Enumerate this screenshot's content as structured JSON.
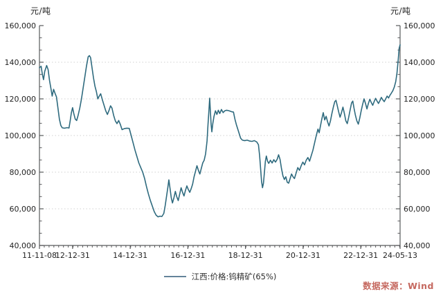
{
  "chart": {
    "unit_left": "元/吨",
    "unit_right": "元/吨",
    "legend": "江西:价格:钨精矿(65%)",
    "source": "数据来源：Wind"
  },
  "colors": {
    "line": "#2e6a7e",
    "axis": "#58595b",
    "tick_label": "#1f1f1f",
    "grid": "#cfcfcf",
    "legend_marker": "#64839a",
    "source_text": "#c5685f"
  },
  "chart_data": {
    "type": "line",
    "title": "",
    "ylabel": "元/吨",
    "legend_position": "bottom-center",
    "grid": "horizontal-dotted",
    "y_axis": {
      "min": 40000,
      "max": 160000,
      "major_step": 20000,
      "minor_divisions": 3,
      "tick_labels": [
        "40,000",
        "60,000",
        "80,000",
        "100,000",
        "120,000",
        "140,000",
        "160,000"
      ],
      "sides": [
        "left",
        "right"
      ]
    },
    "x_axis": {
      "tick_labels": [
        "11-11-08",
        "12-12-31",
        "14-12-31",
        "16-12-31",
        "18-12-31",
        "20-12-31",
        "22-12-31",
        "24-05-13"
      ],
      "tick_months": [
        0,
        13.8,
        37.8,
        61.8,
        85.8,
        109.8,
        133.8,
        150.2
      ],
      "minor_tick_step_months": 2,
      "domain_months": [
        0,
        150.2
      ]
    },
    "series": [
      {
        "name": "江西:价格:钨精矿(65%)",
        "color": "#2e6a7e",
        "x_unit": "months since 2011-11-08",
        "y_unit": "CNY per ton",
        "points": [
          [
            0,
            137000
          ],
          [
            0.7,
            137800
          ],
          [
            1.2,
            133500
          ],
          [
            1.7,
            130500
          ],
          [
            2.2,
            135000
          ],
          [
            3,
            138200
          ],
          [
            3.6,
            136000
          ],
          [
            4.2,
            130000
          ],
          [
            4.8,
            125500
          ],
          [
            5.3,
            121500
          ],
          [
            5.9,
            125200
          ],
          [
            6.5,
            123000
          ],
          [
            7.1,
            121000
          ],
          [
            7.7,
            115000
          ],
          [
            8.3,
            109000
          ],
          [
            8.9,
            105500
          ],
          [
            9.5,
            104200
          ],
          [
            10.5,
            104000
          ],
          [
            11.5,
            104300
          ],
          [
            12.3,
            104100
          ],
          [
            12.8,
            108000
          ],
          [
            13.3,
            112500
          ],
          [
            13.8,
            115200
          ],
          [
            14.3,
            112000
          ],
          [
            14.9,
            109000
          ],
          [
            15.5,
            108200
          ],
          [
            16.1,
            111000
          ],
          [
            16.8,
            115000
          ],
          [
            17.5,
            120000
          ],
          [
            18.2,
            126000
          ],
          [
            18.9,
            132000
          ],
          [
            19.6,
            138000
          ],
          [
            20.3,
            143000
          ],
          [
            20.8,
            143600
          ],
          [
            21.3,
            142500
          ],
          [
            21.9,
            137000
          ],
          [
            22.5,
            131500
          ],
          [
            23.1,
            127000
          ],
          [
            23.7,
            124000
          ],
          [
            24.3,
            120000
          ],
          [
            24.9,
            121500
          ],
          [
            25.5,
            122800
          ],
          [
            26.2,
            119500
          ],
          [
            26.9,
            116500
          ],
          [
            27.6,
            113500
          ],
          [
            28.3,
            111500
          ],
          [
            29,
            113800
          ],
          [
            29.6,
            116200
          ],
          [
            30.2,
            115000
          ],
          [
            30.9,
            111000
          ],
          [
            31.6,
            108000
          ],
          [
            32.3,
            106500
          ],
          [
            33,
            108200
          ],
          [
            33.7,
            106000
          ],
          [
            34.4,
            103200
          ],
          [
            35.4,
            103800
          ],
          [
            36.4,
            104000
          ],
          [
            37.4,
            103900
          ],
          [
            38.2,
            100000
          ],
          [
            39,
            96000
          ],
          [
            39.8,
            92000
          ],
          [
            40.6,
            88500
          ],
          [
            41.4,
            85000
          ],
          [
            42.2,
            82500
          ],
          [
            43,
            80000
          ],
          [
            43.8,
            76500
          ],
          [
            44.6,
            72000
          ],
          [
            45.4,
            68000
          ],
          [
            46.2,
            64500
          ],
          [
            47,
            61500
          ],
          [
            47.8,
            58500
          ],
          [
            48.6,
            56500
          ],
          [
            49.4,
            55600
          ],
          [
            50.2,
            56000
          ],
          [
            51,
            55800
          ],
          [
            51.8,
            57500
          ],
          [
            52.4,
            62000
          ],
          [
            52.9,
            66500
          ],
          [
            53.4,
            71000
          ],
          [
            53.9,
            75800
          ],
          [
            54.4,
            71000
          ],
          [
            54.9,
            66000
          ],
          [
            55.4,
            63200
          ],
          [
            56,
            66000
          ],
          [
            56.6,
            69500
          ],
          [
            57.2,
            66500
          ],
          [
            57.8,
            64500
          ],
          [
            58.4,
            68000
          ],
          [
            59,
            71500
          ],
          [
            59.6,
            69000
          ],
          [
            60.2,
            67000
          ],
          [
            60.8,
            70000
          ],
          [
            61.4,
            72500
          ],
          [
            62,
            70500
          ],
          [
            62.6,
            69000
          ],
          [
            63.2,
            71000
          ],
          [
            63.8,
            73500
          ],
          [
            64.4,
            77500
          ],
          [
            65,
            80500
          ],
          [
            65.6,
            83500
          ],
          [
            66.2,
            81000
          ],
          [
            66.8,
            79000
          ],
          [
            67.4,
            82000
          ],
          [
            68,
            85000
          ],
          [
            68.6,
            86500
          ],
          [
            69.2,
            90000
          ],
          [
            69.8,
            97000
          ],
          [
            70.2,
            106000
          ],
          [
            70.6,
            114000
          ],
          [
            70.9,
            120400
          ],
          [
            71.2,
            113000
          ],
          [
            71.5,
            106000
          ],
          [
            71.8,
            102000
          ],
          [
            72.2,
            106500
          ],
          [
            72.7,
            110500
          ],
          [
            73.3,
            113500
          ],
          [
            73.9,
            111500
          ],
          [
            74.5,
            113800
          ],
          [
            75.1,
            112000
          ],
          [
            75.8,
            114200
          ],
          [
            76.5,
            112500
          ],
          [
            77.2,
            113500
          ],
          [
            78,
            113800
          ],
          [
            79,
            113500
          ],
          [
            80,
            113000
          ],
          [
            80.8,
            112800
          ],
          [
            81.4,
            109000
          ],
          [
            82,
            106000
          ],
          [
            82.6,
            103500
          ],
          [
            83.2,
            101000
          ],
          [
            83.8,
            98500
          ],
          [
            84.5,
            97500
          ],
          [
            85.5,
            97200
          ],
          [
            86.5,
            97500
          ],
          [
            87.5,
            97000
          ],
          [
            88.5,
            96800
          ],
          [
            89.5,
            97200
          ],
          [
            90.5,
            96500
          ],
          [
            91.2,
            95000
          ],
          [
            91.7,
            89000
          ],
          [
            92.1,
            82000
          ],
          [
            92.5,
            75000
          ],
          [
            92.9,
            71500
          ],
          [
            93.3,
            74000
          ],
          [
            93.7,
            80000
          ],
          [
            94.1,
            86000
          ],
          [
            94.5,
            88800
          ],
          [
            95,
            86000
          ],
          [
            95.5,
            84800
          ],
          [
            96.2,
            86500
          ],
          [
            96.9,
            85000
          ],
          [
            97.6,
            86800
          ],
          [
            98.3,
            85500
          ],
          [
            99,
            87000
          ],
          [
            99.6,
            89500
          ],
          [
            100.2,
            87000
          ],
          [
            100.8,
            82000
          ],
          [
            101.4,
            78000
          ],
          [
            102,
            76000
          ],
          [
            102.6,
            77500
          ],
          [
            103.2,
            74500
          ],
          [
            103.8,
            74000
          ],
          [
            104.4,
            76500
          ],
          [
            105,
            79000
          ],
          [
            105.6,
            77500
          ],
          [
            106.2,
            76500
          ],
          [
            106.9,
            79500
          ],
          [
            107.6,
            82500
          ],
          [
            108.3,
            81000
          ],
          [
            109,
            83500
          ],
          [
            109.7,
            85500
          ],
          [
            110.4,
            84000
          ],
          [
            111.1,
            86500
          ],
          [
            111.8,
            88000
          ],
          [
            112.5,
            86000
          ],
          [
            113.2,
            89000
          ],
          [
            113.9,
            92000
          ],
          [
            114.6,
            96000
          ],
          [
            115.3,
            100000
          ],
          [
            116,
            103500
          ],
          [
            116.5,
            101500
          ],
          [
            117,
            105000
          ],
          [
            117.6,
            109000
          ],
          [
            118.2,
            112500
          ],
          [
            118.8,
            108500
          ],
          [
            119.4,
            110500
          ],
          [
            120,
            107500
          ],
          [
            120.6,
            105200
          ],
          [
            121.2,
            108000
          ],
          [
            121.8,
            112000
          ],
          [
            122.4,
            115500
          ],
          [
            123,
            118500
          ],
          [
            123.5,
            119200
          ],
          [
            124,
            116500
          ],
          [
            124.6,
            113000
          ],
          [
            125.2,
            110000
          ],
          [
            125.8,
            112500
          ],
          [
            126.4,
            115500
          ],
          [
            127,
            112000
          ],
          [
            127.6,
            108000
          ],
          [
            128.2,
            106500
          ],
          [
            128.8,
            110000
          ],
          [
            129.4,
            114000
          ],
          [
            130,
            117800
          ],
          [
            130.5,
            118800
          ],
          [
            131,
            115000
          ],
          [
            131.6,
            111000
          ],
          [
            132.2,
            108000
          ],
          [
            132.8,
            106200
          ],
          [
            133.4,
            109500
          ],
          [
            134,
            113500
          ],
          [
            134.6,
            117000
          ],
          [
            135.2,
            120000
          ],
          [
            135.8,
            117500
          ],
          [
            136.4,
            114500
          ],
          [
            137,
            117500
          ],
          [
            137.6,
            119800
          ],
          [
            138.2,
            118000
          ],
          [
            138.8,
            116500
          ],
          [
            139.4,
            118500
          ],
          [
            140,
            120300
          ],
          [
            140.6,
            118800
          ],
          [
            141.2,
            117500
          ],
          [
            141.8,
            119000
          ],
          [
            142.4,
            120800
          ],
          [
            143,
            119500
          ],
          [
            143.6,
            118500
          ],
          [
            144.2,
            120000
          ],
          [
            144.8,
            121500
          ],
          [
            145.4,
            120500
          ],
          [
            146,
            122000
          ],
          [
            146.6,
            123200
          ],
          [
            147.2,
            124500
          ],
          [
            147.8,
            126500
          ],
          [
            148.4,
            129500
          ],
          [
            148.9,
            134000
          ],
          [
            149.4,
            141000
          ],
          [
            149.8,
            147500
          ],
          [
            150.2,
            149500
          ]
        ]
      }
    ]
  }
}
